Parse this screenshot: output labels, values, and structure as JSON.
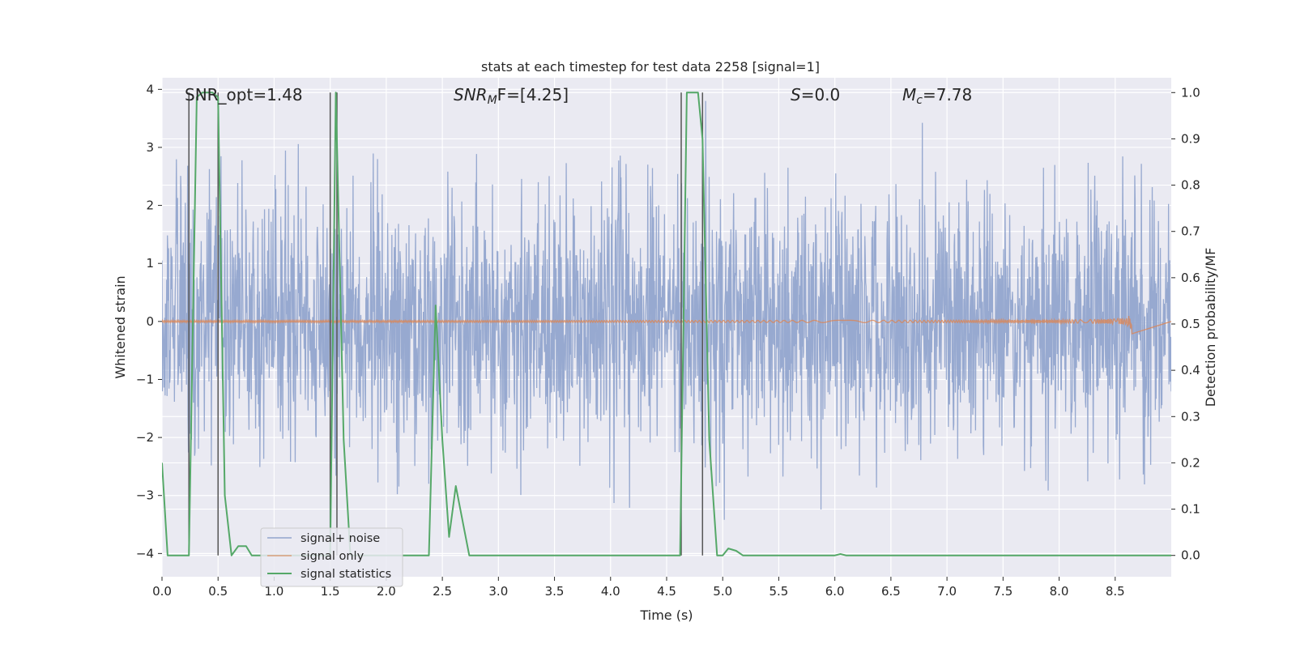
{
  "chart_data": {
    "type": "line",
    "title": "stats at each timestep for test data 2258 [signal=1]",
    "xlabel": "Time (s)",
    "ylabel_left": "Whitened strain",
    "ylabel_right": "Detection probability/MF",
    "xlim": [
      0.0,
      9.0
    ],
    "ylim_left": [
      -4.4,
      4.2
    ],
    "ylim_right": [
      -0.046,
      1.032
    ],
    "x_ticks": [
      "0.0",
      "0.5",
      "1.0",
      "1.5",
      "2.0",
      "2.5",
      "3.0",
      "3.5",
      "4.0",
      "4.5",
      "5.0",
      "5.5",
      "6.0",
      "6.5",
      "7.0",
      "7.5",
      "8.0",
      "8.5"
    ],
    "y_ticks_left": [
      "4",
      "3",
      "2",
      "1",
      "0",
      "−1",
      "−2",
      "−3",
      "−4"
    ],
    "y_ticks_right": [
      "1.0",
      "0.9",
      "0.8",
      "0.7",
      "0.6",
      "0.5",
      "0.4",
      "0.3",
      "0.2",
      "0.1",
      "0.0"
    ],
    "grid": true,
    "legend_position": "lower-left",
    "annotations": {
      "snr_opt": "SNR_opt=1.48",
      "snr_mf_base": "SNR",
      "snr_mf_sub": "M",
      "snr_mf_rest": "F=[4.25]",
      "s_sym": "S",
      "s_rest": "=0.0",
      "mc_sym": "M",
      "mc_sub": "c",
      "mc_rest": "=7.78"
    },
    "series": [
      {
        "name": "signal+ noise",
        "color": "#92a5cd",
        "axis": "left",
        "description": "whitened noisy strain, approx. range -4.0 to 4.0",
        "amplitude_typical": 1.5,
        "amplitude_peak": 3.8
      },
      {
        "name": "signal only",
        "color": "#dd8452",
        "axis": "left",
        "description": "chirp signal, amplitude growing to about 0.25 near t=8.65 s",
        "end_time": 8.65,
        "peak_amplitude": 0.25
      },
      {
        "name": "signal statistics",
        "color": "#55a868",
        "axis": "right",
        "x": [
          0.0,
          0.05,
          0.24,
          0.31,
          0.36,
          0.45,
          0.5,
          0.56,
          0.62,
          0.68,
          0.75,
          0.8,
          0.85,
          1.5,
          1.55,
          1.62,
          1.68,
          1.75,
          2.0,
          2.2,
          2.38,
          2.44,
          2.5,
          2.56,
          2.62,
          2.7,
          2.74,
          4.55,
          4.62,
          4.68,
          4.72,
          4.78,
          4.82,
          4.88,
          4.95,
          5.0,
          5.05,
          5.12,
          5.18,
          6.0,
          6.05,
          6.1,
          9.0
        ],
        "y": [
          0.2,
          0.0,
          0.0,
          0.99,
          1.0,
          1.0,
          0.99,
          0.13,
          0.0,
          0.02,
          0.02,
          0.0,
          0.0,
          0.0,
          1.0,
          0.25,
          0.0,
          0.0,
          0.0,
          0.0,
          0.0,
          0.54,
          0.25,
          0.04,
          0.15,
          0.05,
          0.0,
          0.0,
          0.0,
          1.0,
          1.0,
          1.0,
          0.9,
          0.25,
          0.0,
          0.0,
          0.015,
          0.01,
          0.0,
          0.0,
          0.003,
          0.0,
          0.0
        ]
      }
    ],
    "vertical_lines": {
      "color": "#555555",
      "x": [
        0.24,
        0.5,
        1.5,
        1.56,
        4.63,
        4.82
      ]
    }
  }
}
